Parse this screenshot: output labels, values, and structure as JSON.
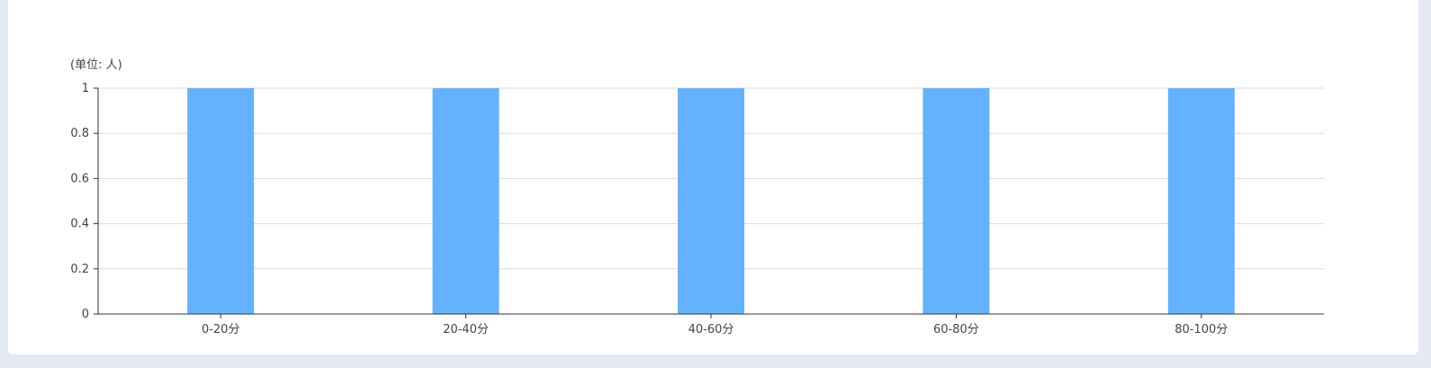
{
  "chart_data": {
    "type": "bar",
    "unit_label": "(单位: 人)",
    "categories": [
      "0-20分",
      "20-40分",
      "40-60分",
      "60-80分",
      "80-100分"
    ],
    "values": [
      1,
      1,
      1,
      1,
      1
    ],
    "ylim": [
      0,
      1
    ],
    "yticks": [
      0,
      0.2,
      0.4,
      0.6,
      0.8,
      1
    ],
    "ytick_labels": [
      "0",
      "0.2",
      "0.4",
      "0.6",
      "0.8",
      "1"
    ],
    "grid": true,
    "bar_color": "#64b1ff",
    "grid_color": "#d9d9d9",
    "axis_color": "#333333"
  }
}
